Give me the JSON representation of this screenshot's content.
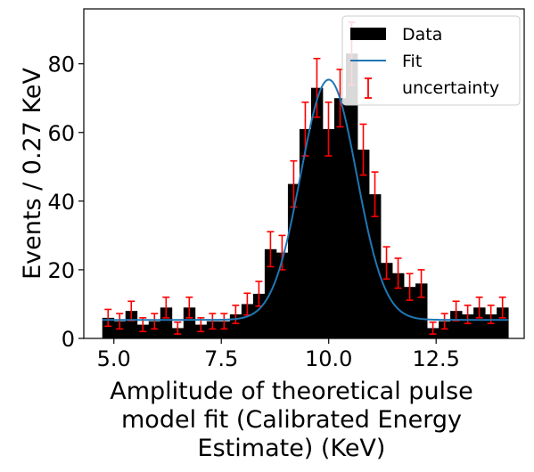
{
  "chart_data": {
    "type": "bar",
    "xlabel_lines": [
      "Amplitude of theoretical pulse",
      "model fit (Calibrated Energy",
      "Estimate) (KeV)"
    ],
    "ylabel": "Events / 0.27 KeV",
    "xlim": [
      4.3,
      14.55
    ],
    "ylim": [
      0,
      96
    ],
    "xticks": [
      5.0,
      7.5,
      10.0,
      12.5
    ],
    "xtick_labels": [
      "5.0",
      "7.5",
      "10.0",
      "12.5"
    ],
    "yticks": [
      0,
      20,
      40,
      60,
      80
    ],
    "ytick_labels": [
      "0",
      "20",
      "40",
      "60",
      "80"
    ],
    "bin_width": 0.27,
    "bin_start": 4.73,
    "values": [
      6,
      5,
      8,
      4,
      5,
      9,
      3,
      9,
      4,
      5,
      5,
      7,
      10,
      13,
      26,
      25,
      45,
      61,
      73,
      61,
      70,
      83,
      55,
      42,
      22,
      19,
      15,
      16,
      3,
      5,
      8,
      7,
      9,
      7,
      9
    ],
    "colors": {
      "bars": "#000000",
      "fit": "#1f77b4",
      "errorbars": "#ff0000"
    },
    "fit": {
      "label": "Fit",
      "amplitude": 70,
      "mean": 10.0,
      "sigma": 0.65,
      "baseline": 5.4
    },
    "legend": {
      "position": "top-right",
      "entries": [
        "Data",
        "Fit",
        "uncertainty"
      ]
    }
  }
}
